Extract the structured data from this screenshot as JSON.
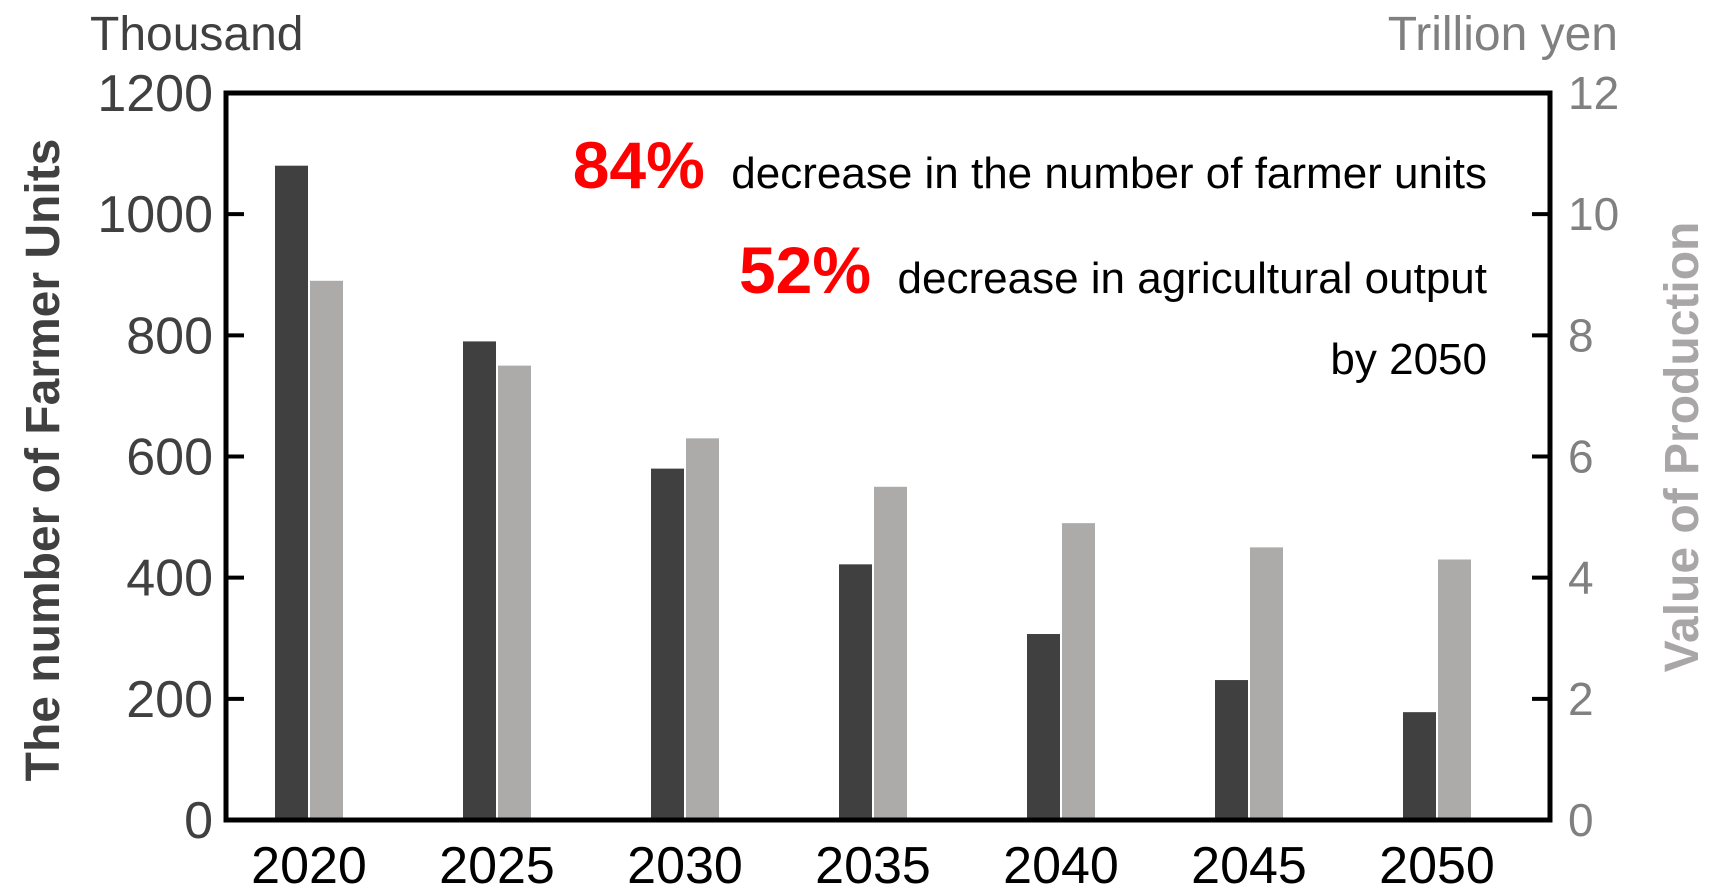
{
  "chart_data": {
    "type": "bar",
    "categories": [
      "2020",
      "2025",
      "2030",
      "2035",
      "2040",
      "2045",
      "2050"
    ],
    "series": [
      {
        "axis": "left",
        "color": "#404040",
        "values": [
          1080,
          790,
          580,
          422,
          307,
          231,
          178
        ]
      },
      {
        "axis": "right",
        "color": "#adaaaa",
        "values": [
          8.9,
          7.5,
          6.3,
          5.5,
          4.9,
          4.5,
          4.3
        ]
      }
    ],
    "left_axis": {
      "label": "The number of Farmer Units",
      "unit": "Thousand",
      "ylim": [
        0,
        1200
      ],
      "ticks": [
        "0",
        "200",
        "400",
        "600",
        "800",
        "1000",
        "1200"
      ]
    },
    "right_axis": {
      "label": "Value of Production",
      "unit": "Trillion yen",
      "ylim": [
        0,
        12
      ],
      "ticks": [
        "0",
        "2",
        "4",
        "6",
        "8",
        "10",
        "12"
      ]
    },
    "annotations": {
      "line1_pct": "84%",
      "line1_text": "decrease in the number of farmer units",
      "line2_pct": "52%",
      "line2_text": "decrease in agricultural output",
      "line3_text": "by 2050",
      "highlight_color": "#ff0000"
    },
    "grid": false,
    "legend": "none"
  }
}
